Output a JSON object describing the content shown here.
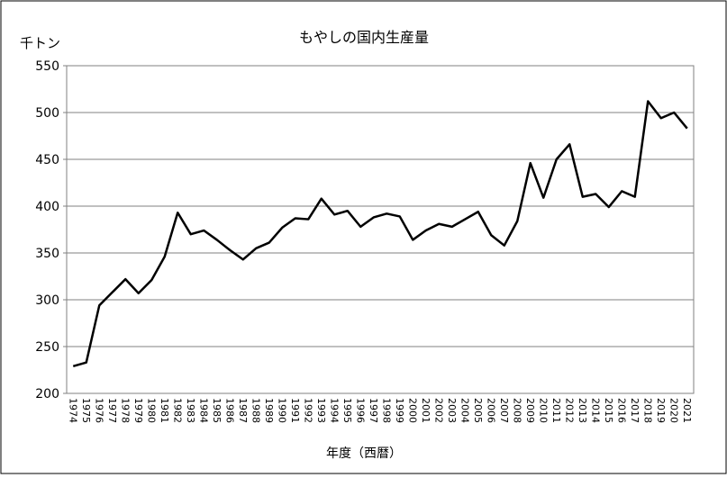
{
  "chart_data": {
    "type": "line",
    "title": "もやしの国内生産量",
    "y_label": "千トン",
    "x_label": "年度（西暦）",
    "categories": [
      "1974",
      "1975",
      "1976",
      "1977",
      "1978",
      "1979",
      "1980",
      "1981",
      "1982",
      "1983",
      "1984",
      "1985",
      "1986",
      "1987",
      "1988",
      "1989",
      "1990",
      "1991",
      "1992",
      "1993",
      "1994",
      "1995",
      "1996",
      "1997",
      "1998",
      "1999",
      "2000",
      "2001",
      "2002",
      "2003",
      "2004",
      "2005",
      "2006",
      "2007",
      "2008",
      "2009",
      "2010",
      "2011",
      "2012",
      "2013",
      "2014",
      "2015",
      "2016",
      "2017",
      "2018",
      "2019",
      "2020",
      "2021"
    ],
    "values": [
      229,
      233,
      294,
      308,
      322,
      307,
      321,
      346,
      393,
      370,
      374,
      364,
      353,
      343,
      355,
      361,
      377,
      387,
      386,
      408,
      391,
      395,
      378,
      388,
      392,
      389,
      364,
      374,
      381,
      378,
      386,
      394,
      369,
      358,
      384,
      446,
      409,
      450,
      466,
      410,
      413,
      399,
      416,
      410,
      512,
      494,
      500,
      483
    ],
    "color": "#000000",
    "ylim": [
      200,
      550
    ],
    "yticks": [
      200,
      250,
      300,
      350,
      400,
      450,
      500,
      550
    ],
    "grid": true
  }
}
